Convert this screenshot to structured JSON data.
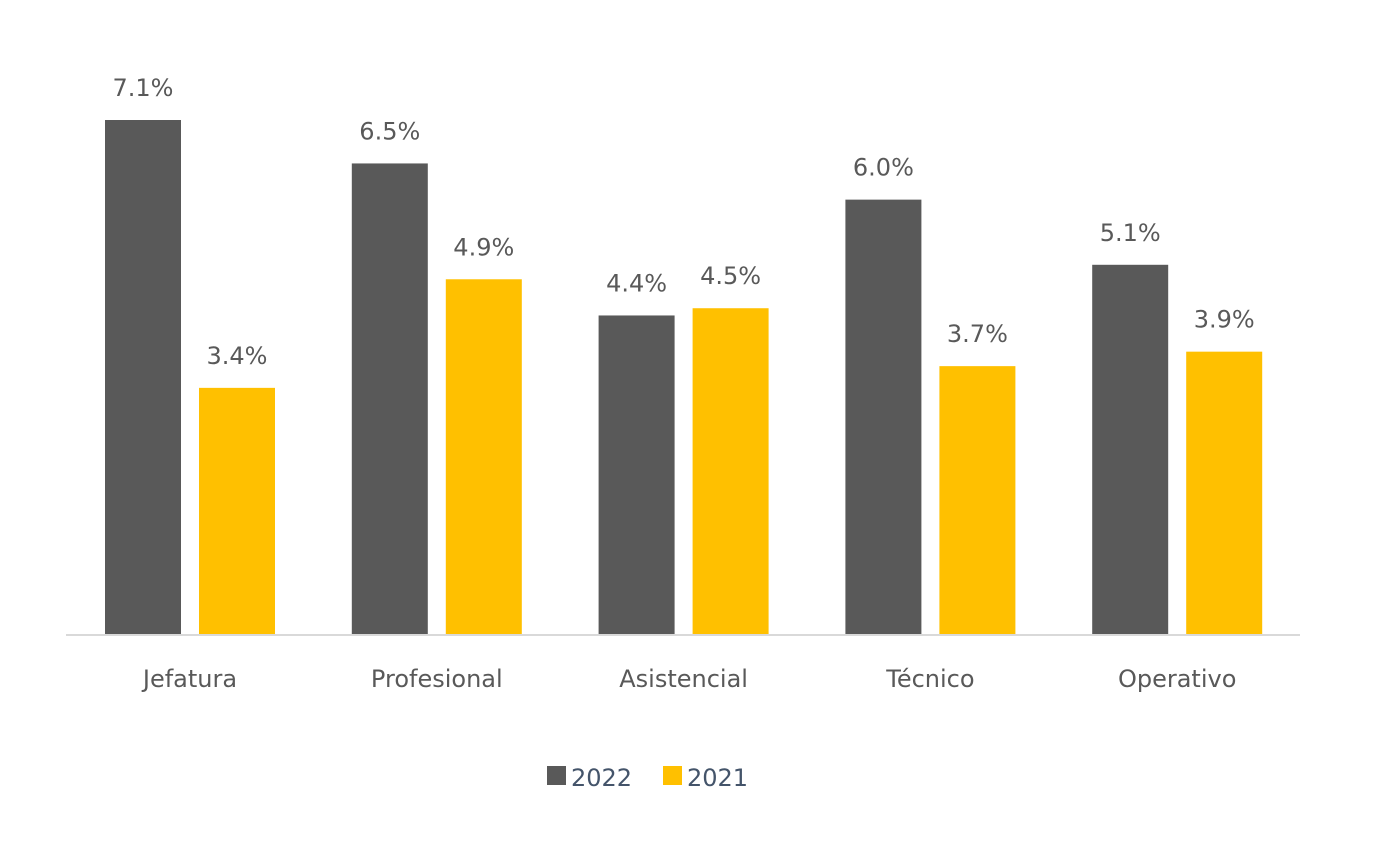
{
  "chart_data": {
    "type": "bar",
    "title": "",
    "xlabel": "",
    "ylabel": "",
    "ylim": [
      0,
      7.1
    ],
    "grid": false,
    "legend_position": "bottom",
    "categories": [
      "Jefatura",
      "Profesional",
      "Asistencial",
      "Técnico",
      "Operativo"
    ],
    "series": [
      {
        "name": "2022",
        "color": "#595959",
        "values": [
          7.1,
          6.5,
          4.4,
          6.0,
          5.1
        ],
        "labels": [
          "7.1%",
          "6.5%",
          "4.4%",
          "6.0%",
          "5.1%"
        ]
      },
      {
        "name": "2021",
        "color": "#FFC000",
        "values": [
          3.4,
          4.9,
          4.5,
          3.7,
          3.9
        ],
        "labels": [
          "3.4%",
          "4.9%",
          "4.5%",
          "3.7%",
          "3.9%"
        ]
      }
    ]
  }
}
